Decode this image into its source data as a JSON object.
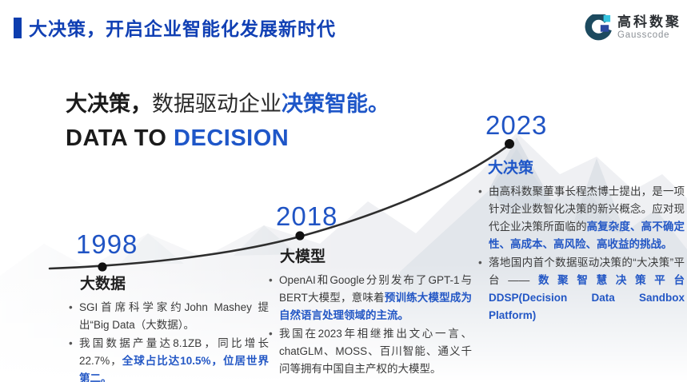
{
  "header": {
    "title": "大决策，开启企业智能化发展新时代"
  },
  "logo": {
    "name_zh": "高科数聚",
    "name_en": "Gausscode"
  },
  "hero": {
    "line1_bold_black": "大决策，",
    "line1_regular": "数据驱动企业",
    "line1_bold_blue": "决策智能。",
    "line2_black": "DATA TO ",
    "line2_blue": "DECISION"
  },
  "timeline": {
    "milestones": [
      {
        "year": "1998",
        "title": "大数据",
        "title_style": "dark",
        "bullets": [
          [
            {
              "text": "SGI首席科学家约John Mashey 提出“Big Data（大数据）。",
              "highlight": false
            }
          ],
          [
            {
              "text": "我国数据产量达8.1ZB，同比增长22.7%，",
              "highlight": false
            },
            {
              "text": "全球占比达10.5%，位居世界第二。",
              "highlight": true
            }
          ]
        ]
      },
      {
        "year": "2018",
        "title": "大模型",
        "title_style": "dark",
        "bullets": [
          [
            {
              "text": "OpenAI和Google分别发布了GPT-1与BERT大模型，意味着",
              "highlight": false
            },
            {
              "text": "预训练大模型成为自然语言处理领域的主流。",
              "highlight": true
            }
          ],
          [
            {
              "text": "我国在2023年相继推出文心一言、chatGLM、MOSS、百川智能、通义千问等拥有中国自主产权的大模型。",
              "highlight": false
            }
          ]
        ]
      },
      {
        "year": "2023",
        "title": "大决策",
        "title_style": "blue",
        "bullets": [
          [
            {
              "text": "由高科数聚董事长程杰博士提出，是一项针对企业数智化决策的新兴概念。应对现代企业决策所面临的",
              "highlight": false
            },
            {
              "text": "高复杂度、高不确定性、高成本、高风险、高收益的挑战。",
              "highlight": true
            }
          ],
          [
            {
              "text": "落地国内首个数据驱动决策的“大决策”平台——",
              "highlight": false
            },
            {
              "text": "数聚智慧决策平台DDSP(Decision Data Sandbox Platform)",
              "highlight": true
            }
          ]
        ]
      }
    ]
  },
  "colors": {
    "accent_blue": "#1140b4",
    "year_blue": "#2054c4",
    "highlight_blue": "#2357c5",
    "body_text": "#3a3a3a",
    "curve": "#2e2e2e",
    "logo_teal": "#1c4a5f",
    "logo_cyan": "#35c4e0",
    "logo_navy": "#2b49a0"
  }
}
